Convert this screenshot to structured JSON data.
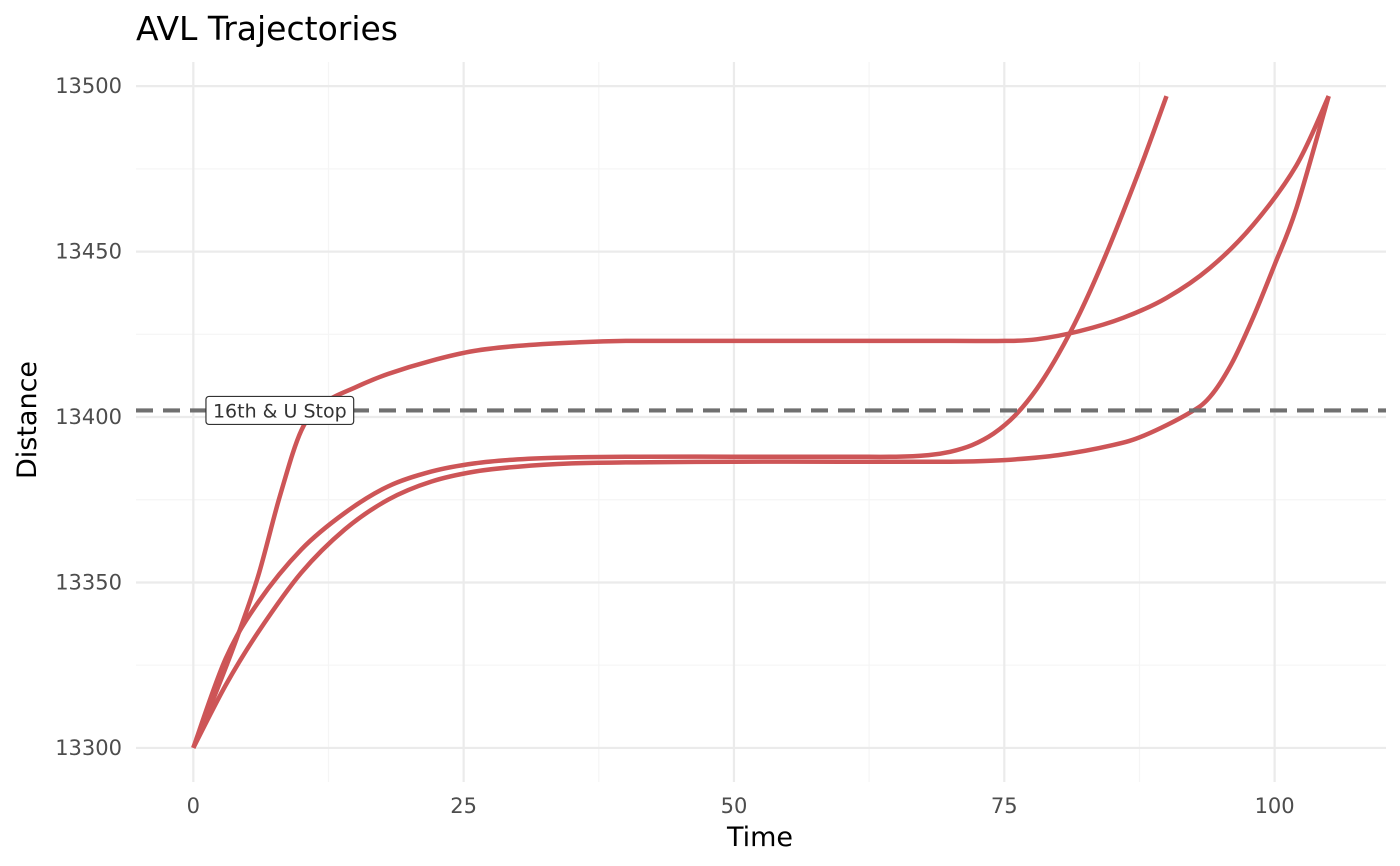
{
  "chart_data": {
    "type": "line",
    "title": "AVL Trajectories",
    "xlabel": "Time",
    "ylabel": "Distance",
    "xlim": [
      -5.3,
      110.3
    ],
    "ylim": [
      13289.7,
      13507.3
    ],
    "xticks": [
      0,
      25,
      50,
      75,
      100
    ],
    "xtick_labels": [
      "0",
      "25",
      "50",
      "75",
      "100"
    ],
    "yticks": [
      13300,
      13350,
      13400,
      13450,
      13500
    ],
    "ytick_labels": [
      "13300",
      "13350",
      "13400",
      "13450",
      "13500"
    ],
    "grid": true,
    "legend": "none",
    "colors": {
      "series": "#cd5557",
      "reference_line": "#707070",
      "grid_major": "#ebebeb",
      "grid_minor": "#f5f5f5"
    },
    "reference_line": {
      "y": 13402,
      "label": "16th & U Stop",
      "style": "dashed",
      "label_x": 8
    },
    "series": [
      {
        "x": [
          0,
          2,
          4,
          6,
          8,
          10,
          12,
          15,
          18,
          22,
          26,
          30,
          35,
          40,
          50,
          60,
          70,
          75,
          78,
          82,
          86,
          90,
          94,
          98,
          102,
          105
        ],
        "y": [
          13300,
          13316,
          13333,
          13352,
          13376,
          13396,
          13404,
          13409,
          13413,
          13417,
          13420,
          13421.5,
          13422.5,
          13423,
          13423,
          13423,
          13423,
          13423,
          13423.5,
          13426,
          13430,
          13436,
          13445,
          13458,
          13476,
          13497
        ]
      },
      {
        "x": [
          0,
          3,
          6,
          10,
          14,
          18,
          22,
          26,
          30,
          35,
          40,
          50,
          60,
          65,
          68,
          70,
          72,
          74,
          76,
          78,
          80,
          82,
          84,
          86,
          88,
          90
        ],
        "y": [
          13300,
          13327,
          13344,
          13360,
          13371,
          13379,
          13383.5,
          13386,
          13387.2,
          13387.8,
          13388,
          13388,
          13388,
          13388,
          13388.5,
          13389.5,
          13391.5,
          13395,
          13400.5,
          13408.5,
          13419,
          13431.5,
          13446,
          13462,
          13479,
          13497
        ]
      },
      {
        "x": [
          0,
          3,
          6,
          10,
          14,
          18,
          22,
          26,
          30,
          35,
          40,
          50,
          60,
          70,
          75,
          80,
          85,
          88,
          92,
          94,
          96,
          98,
          100,
          102,
          105
        ],
        "y": [
          13300,
          13319,
          13335,
          13353,
          13366,
          13375,
          13380.5,
          13383.5,
          13385,
          13386,
          13386.3,
          13386.5,
          13386.5,
          13386.5,
          13387,
          13388.5,
          13391.5,
          13394.5,
          13401,
          13406,
          13416,
          13430,
          13446,
          13463,
          13497
        ]
      }
    ]
  }
}
